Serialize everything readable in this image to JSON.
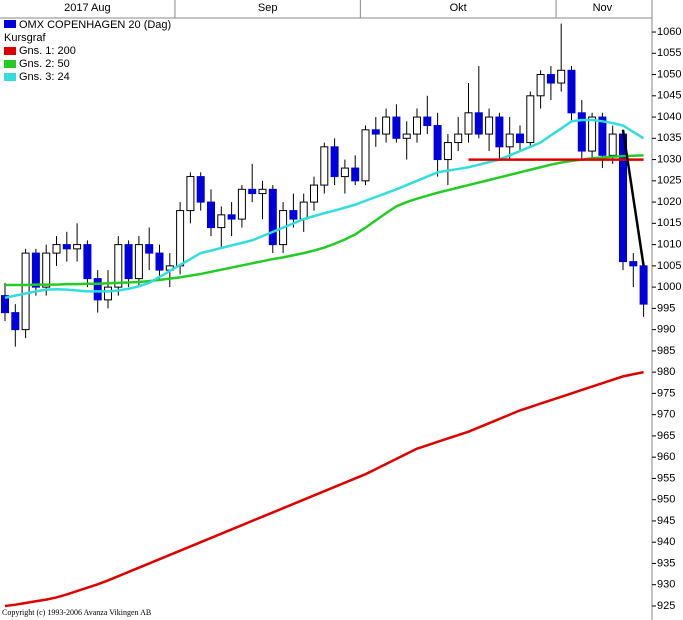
{
  "chart_data": {
    "type": "candlestick",
    "title": "OMX COPENHAGEN 20 (Dag)",
    "subtitle": "Kursgraf",
    "color": "#0000dd",
    "copyright": "Copyright (c) 1993-2006 Avanza Vikingen AB",
    "months": [
      {
        "label": "2017 Aug",
        "start": 0
      },
      {
        "label": "Sep",
        "start": 17
      },
      {
        "label": "Okt",
        "start": 35
      },
      {
        "label": "Nov",
        "start": 54
      }
    ],
    "ylim": [
      921.7,
      1063.3
    ],
    "yticks": [
      925,
      930,
      935,
      940,
      945,
      950,
      955,
      960,
      965,
      970,
      975,
      980,
      985,
      990,
      995,
      1000,
      1005,
      1010,
      1015,
      1020,
      1025,
      1030,
      1035,
      1040,
      1045,
      1050,
      1055,
      1060
    ],
    "candles": [
      [
        998,
        1001,
        992,
        994
      ],
      [
        994,
        996,
        986,
        990
      ],
      [
        990,
        1009,
        988,
        1008
      ],
      [
        1008,
        1009,
        998,
        1000
      ],
      [
        1000,
        1010,
        998,
        1008
      ],
      [
        1008,
        1012,
        1005,
        1010
      ],
      [
        1010,
        1013,
        1006,
        1009
      ],
      [
        1009,
        1015,
        1006,
        1010
      ],
      [
        1010,
        1011,
        1000,
        1002
      ],
      [
        1002,
        1004,
        994,
        997
      ],
      [
        997,
        1004,
        995,
        1000
      ],
      [
        1000,
        1012,
        998,
        1010
      ],
      [
        1010,
        1011,
        1000,
        1002
      ],
      [
        1002,
        1012,
        1000,
        1010
      ],
      [
        1010,
        1014,
        1004,
        1008
      ],
      [
        1008,
        1010,
        1002,
        1004
      ],
      [
        1004,
        1008,
        1000,
        1005
      ],
      [
        1005,
        1020,
        1003,
        1018
      ],
      [
        1018,
        1027,
        1015,
        1026
      ],
      [
        1026,
        1027,
        1018,
        1020
      ],
      [
        1020,
        1023,
        1012,
        1014
      ],
      [
        1014,
        1019,
        1009,
        1017
      ],
      [
        1017,
        1020,
        1012,
        1016
      ],
      [
        1016,
        1024,
        1014,
        1023
      ],
      [
        1023,
        1029,
        1020,
        1022
      ],
      [
        1022,
        1025,
        1016,
        1023
      ],
      [
        1023,
        1024,
        1008,
        1010
      ],
      [
        1010,
        1020,
        1008,
        1018
      ],
      [
        1018,
        1022,
        1014,
        1016
      ],
      [
        1016,
        1022,
        1013,
        1020
      ],
      [
        1020,
        1026,
        1018,
        1024
      ],
      [
        1024,
        1034,
        1022,
        1033
      ],
      [
        1033,
        1035,
        1024,
        1026
      ],
      [
        1026,
        1030,
        1022,
        1028
      ],
      [
        1028,
        1031,
        1024,
        1025
      ],
      [
        1025,
        1038,
        1024,
        1037
      ],
      [
        1037,
        1040,
        1033,
        1036
      ],
      [
        1036,
        1042,
        1034,
        1040
      ],
      [
        1040,
        1043,
        1034,
        1035
      ],
      [
        1035,
        1039,
        1030,
        1036
      ],
      [
        1036,
        1042,
        1034,
        1040
      ],
      [
        1040,
        1045,
        1036,
        1038
      ],
      [
        1038,
        1041,
        1026,
        1030
      ],
      [
        1030,
        1036,
        1024,
        1034
      ],
      [
        1034,
        1040,
        1032,
        1036
      ],
      [
        1036,
        1048,
        1034,
        1041
      ],
      [
        1041,
        1052,
        1035,
        1036
      ],
      [
        1036,
        1042,
        1032,
        1040
      ],
      [
        1040,
        1041,
        1030,
        1033
      ],
      [
        1033,
        1040,
        1030,
        1036
      ],
      [
        1036,
        1038,
        1032,
        1034
      ],
      [
        1034,
        1046,
        1033,
        1045
      ],
      [
        1045,
        1051,
        1042,
        1050
      ],
      [
        1050,
        1052,
        1044,
        1048
      ],
      [
        1048,
        1062,
        1046,
        1051
      ],
      [
        1051,
        1052,
        1039,
        1041
      ],
      [
        1041,
        1044,
        1030,
        1032
      ],
      [
        1032,
        1041,
        1030,
        1040
      ],
      [
        1040,
        1041,
        1028,
        1031
      ],
      [
        1031,
        1038,
        1029,
        1036
      ],
      [
        1036,
        1037,
        1004,
        1006
      ],
      [
        1006,
        1008,
        1000,
        1005
      ],
      [
        1005,
        1006,
        993,
        996
      ]
    ],
    "series": [
      {
        "name": "Gns. 1: 200",
        "color": "#dd0000",
        "values": [
          925,
          925.3,
          925.7,
          926.1,
          926.5,
          927,
          927.7,
          928.5,
          929.3,
          930.1,
          931,
          932,
          933,
          934,
          935,
          936,
          937,
          938,
          939,
          940,
          941,
          942,
          943,
          944,
          945,
          946,
          947,
          948,
          949,
          950,
          951,
          952,
          953,
          954,
          955,
          956,
          957.2,
          958.4,
          959.6,
          960.8,
          962,
          962.8,
          963.6,
          964.4,
          965.2,
          966,
          967,
          968,
          969,
          970,
          971,
          971.8,
          972.6,
          973.4,
          974.2,
          975,
          975.8,
          976.6,
          977.4,
          978.2,
          979,
          979.5,
          980
        ]
      },
      {
        "name": "Gns. 2: 50",
        "color": "#22cc22",
        "values": [
          1000.5,
          1000.5,
          1000.5,
          1000.6,
          1000.6,
          1000.6,
          1000.7,
          1000.7,
          1000.8,
          1000.8,
          1000.9,
          1001,
          1001.1,
          1001.2,
          1001.4,
          1001.7,
          1002,
          1002.3,
          1002.7,
          1003.1,
          1003.6,
          1004.1,
          1004.6,
          1005.1,
          1005.6,
          1006.1,
          1006.6,
          1007,
          1007.5,
          1008,
          1008.6,
          1009.3,
          1010.2,
          1011.2,
          1012.4,
          1014,
          1015.7,
          1017.4,
          1019,
          1020,
          1020.8,
          1021.5,
          1022.2,
          1022.8,
          1023.4,
          1024,
          1024.6,
          1025.2,
          1025.8,
          1026.4,
          1027,
          1027.6,
          1028.2,
          1028.8,
          1029.3,
          1029.7,
          1030,
          1030.3,
          1030.5,
          1030.7,
          1030.8,
          1030.9,
          1031
        ]
      },
      {
        "name": "Gns. 3: 24",
        "color": "#33dddd",
        "values": [
          997.5,
          998,
          998.5,
          999,
          999.4,
          999.5,
          999.4,
          999.2,
          999,
          999,
          999,
          999.2,
          999.6,
          1000.2,
          1001,
          1002.4,
          1003.8,
          1005.2,
          1006.6,
          1008,
          1008.6,
          1009.2,
          1009.8,
          1010.4,
          1011,
          1012,
          1013,
          1014,
          1015,
          1016,
          1016.7,
          1017.4,
          1018,
          1018.7,
          1019.4,
          1020.3,
          1021.2,
          1022.1,
          1023,
          1024,
          1025,
          1026,
          1027,
          1027.4,
          1027.8,
          1028.2,
          1028.8,
          1029.4,
          1030,
          1031,
          1032,
          1033,
          1034,
          1035.7,
          1037.3,
          1039,
          1039.3,
          1039.3,
          1039,
          1038.6,
          1038,
          1036.5,
          1035
        ]
      }
    ],
    "trend_lines": [
      {
        "color": "#dd0000",
        "from": [
          45,
          1030
        ],
        "to": [
          62,
          1030
        ]
      },
      {
        "color": "#000000",
        "from": [
          60,
          1037
        ],
        "to": [
          62,
          1005
        ]
      }
    ]
  }
}
